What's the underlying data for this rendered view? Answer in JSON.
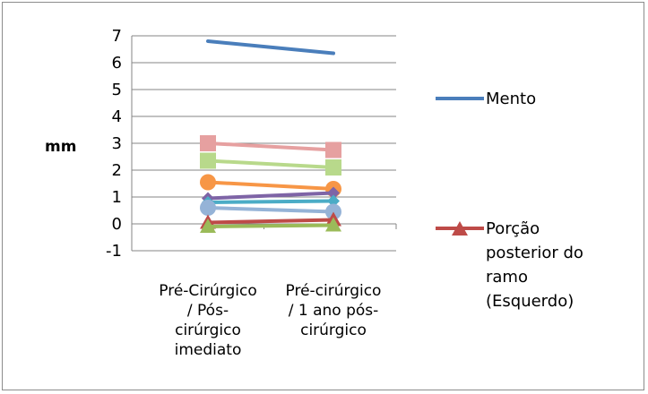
{
  "chart_data": {
    "type": "line",
    "ylabel": "mm",
    "ylim": [
      -1,
      7
    ],
    "yticks": [
      -1,
      0,
      1,
      2,
      3,
      4,
      5,
      6,
      7
    ],
    "grid": "horizontal",
    "legend_placement": "right",
    "categories": [
      [
        "Pré-Cirúrgico",
        "/ Pós-",
        "cirúrgico",
        "imediato"
      ],
      [
        "Pré-cirúrgico",
        "/ 1 ano pós-",
        "cirúrgico"
      ]
    ],
    "series": [
      {
        "name": "Mento",
        "color": "#4a7ebb",
        "marker": "none",
        "values": [
          6.8,
          6.35
        ]
      },
      {
        "color": "#e6a0a0",
        "marker": "square",
        "values": [
          3.0,
          2.75
        ]
      },
      {
        "color": "#b8d98b",
        "marker": "square",
        "values": [
          2.35,
          2.1
        ]
      },
      {
        "color": "#f79646",
        "marker": "circle",
        "values": [
          1.55,
          1.3
        ]
      },
      {
        "color": "#7e64a6",
        "marker": "diamond",
        "values": [
          0.95,
          1.15
        ]
      },
      {
        "color": "#4bacc6",
        "marker": "diamond",
        "values": [
          0.8,
          0.85
        ]
      },
      {
        "color": "#95b3d7",
        "marker": "circle",
        "values": [
          0.6,
          0.45
        ]
      },
      {
        "name": "Porção posterior do ramo (Esquerdo)",
        "legend_lines": [
          "Porção",
          "posterior do",
          "ramo",
          "(Esquerdo)"
        ],
        "color": "#be4b48",
        "marker": "triangle",
        "values": [
          0.05,
          0.15
        ]
      },
      {
        "color": "#9bbb59",
        "marker": "triangle",
        "values": [
          -0.1,
          -0.05
        ]
      }
    ]
  }
}
